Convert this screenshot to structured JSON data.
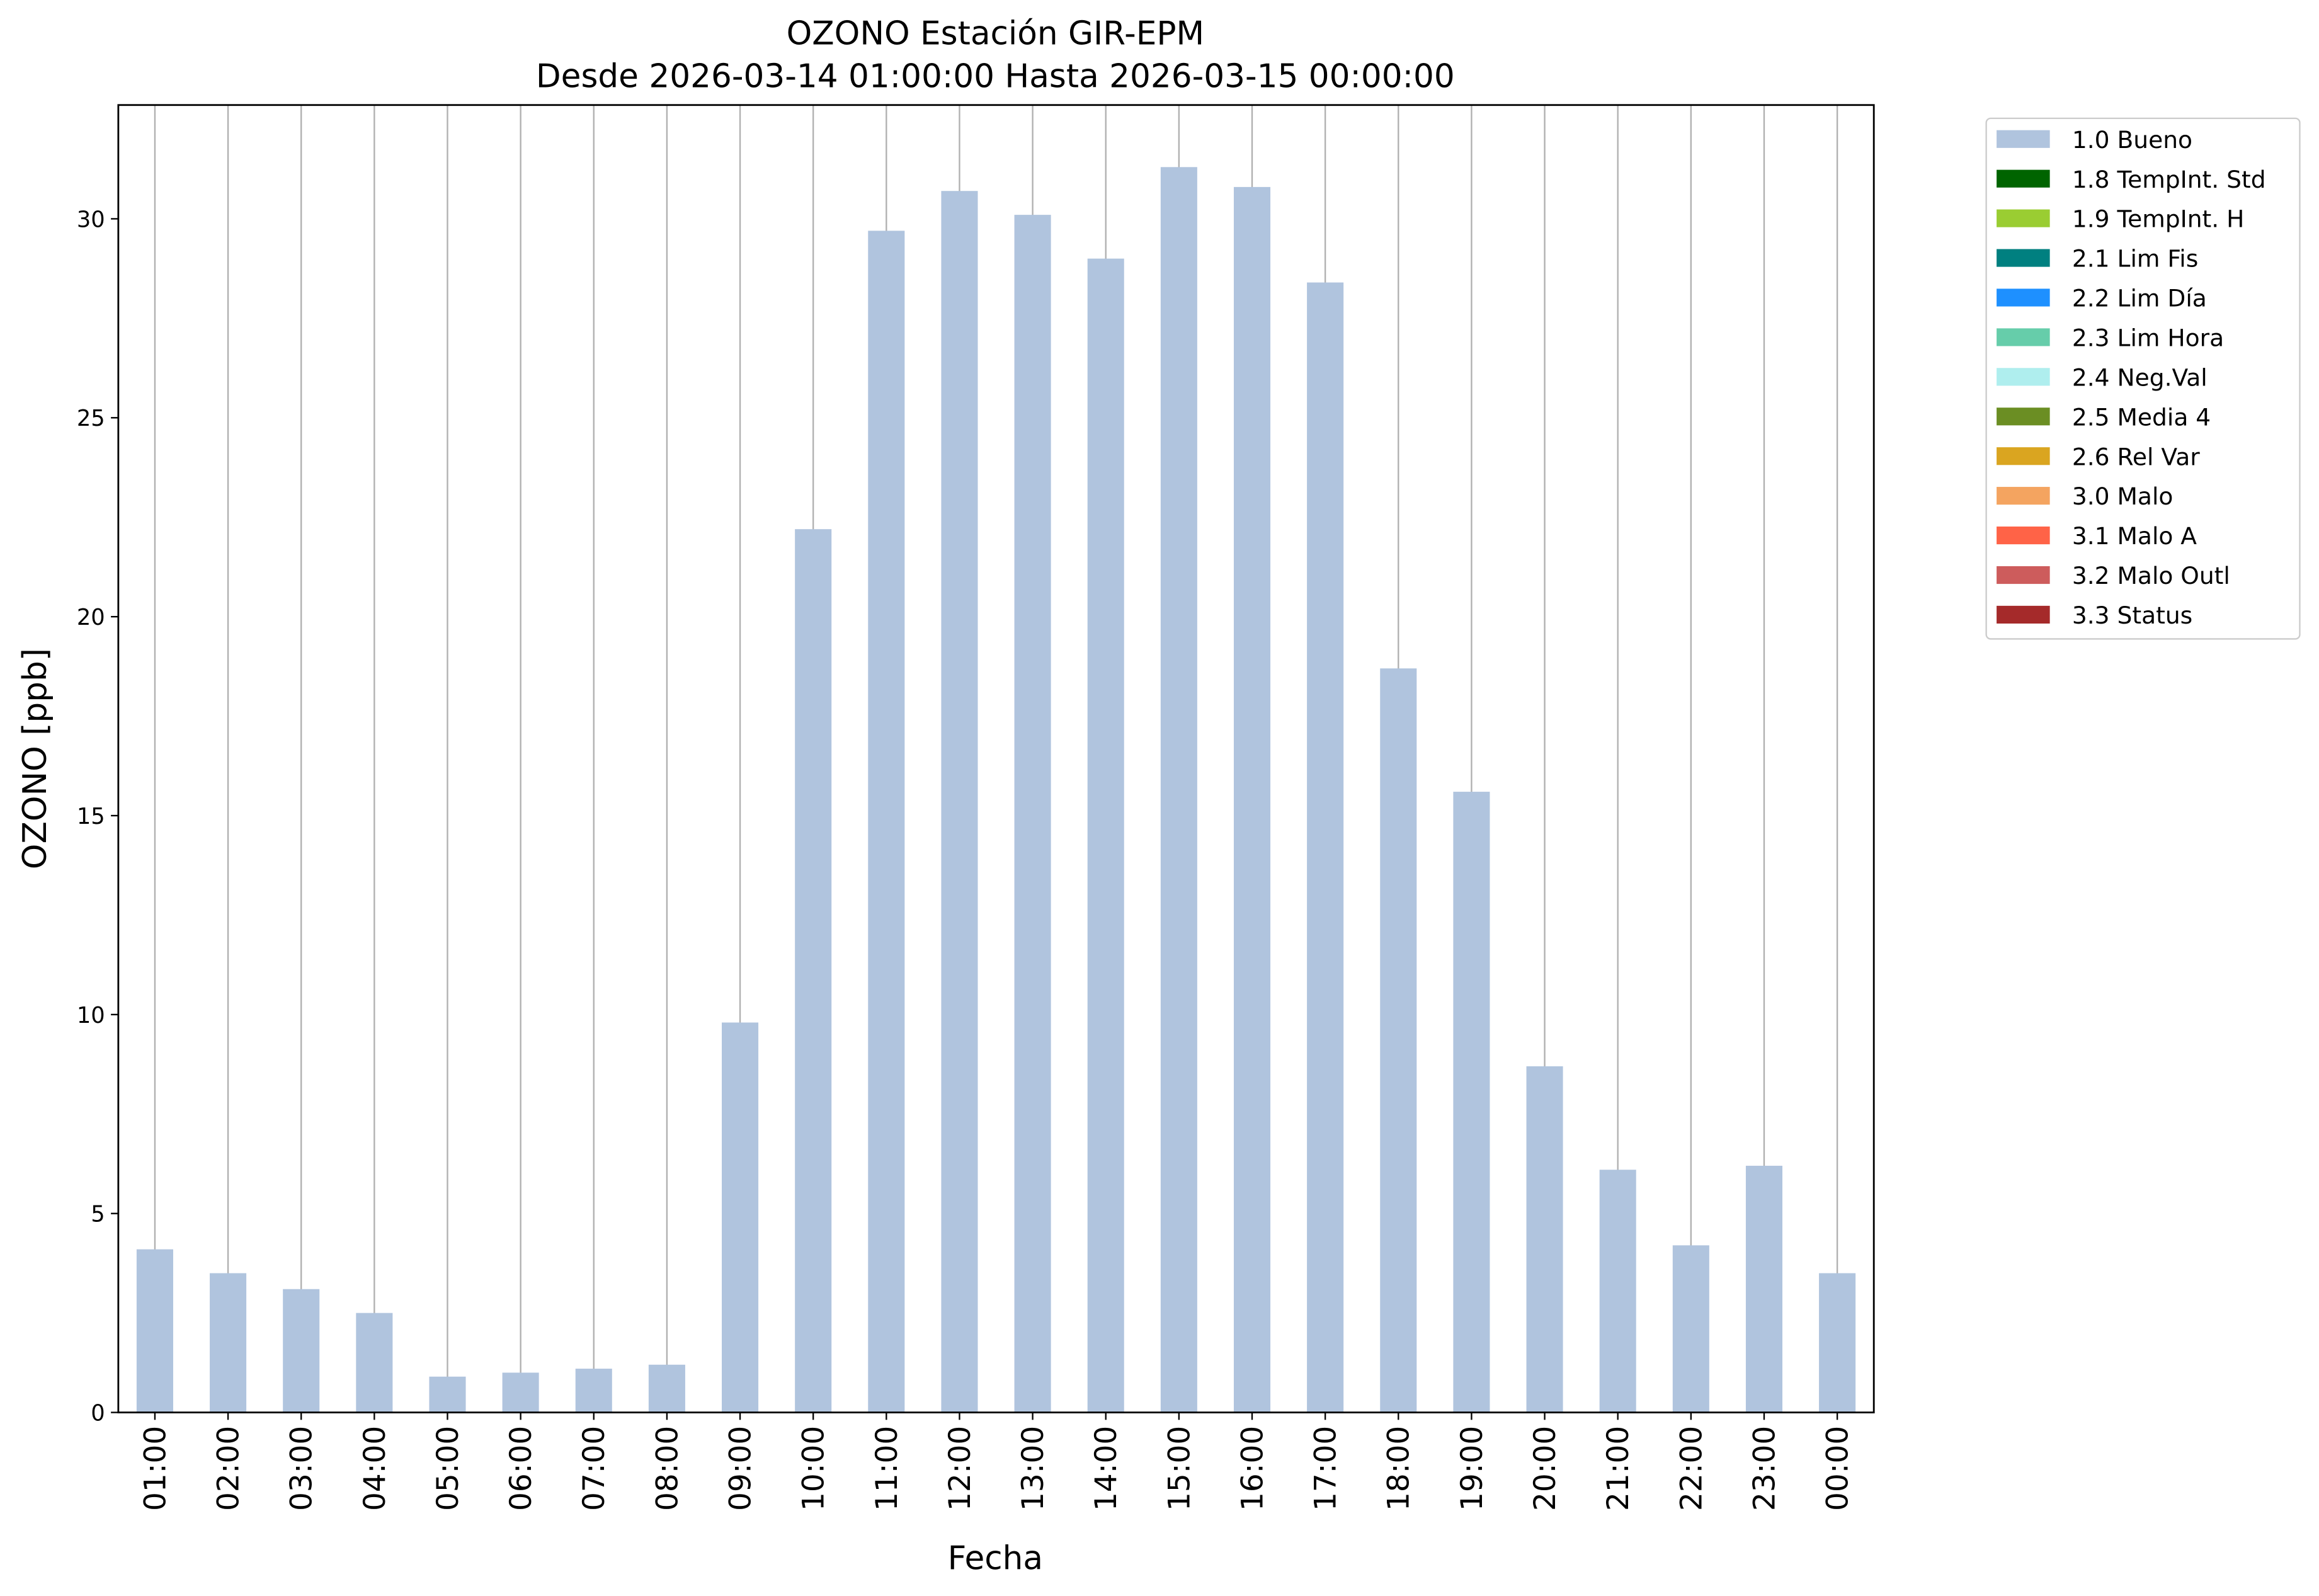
{
  "chart_data": {
    "type": "bar",
    "title": "OZONO Estación GIR-EPM",
    "subtitle": "Desde 2026-03-14 01:00:00 Hasta 2026-03-15 00:00:00",
    "x_label": "Fecha",
    "y_label": "OZONO [ppb]",
    "categories": [
      "01:00",
      "02:00",
      "03:00",
      "04:00",
      "05:00",
      "06:00",
      "07:00",
      "08:00",
      "09:00",
      "10:00",
      "11:00",
      "12:00",
      "13:00",
      "14:00",
      "15:00",
      "16:00",
      "17:00",
      "18:00",
      "19:00",
      "20:00",
      "21:00",
      "22:00",
      "23:00",
      "00:00"
    ],
    "series": [
      {
        "name": "1.0 Bueno",
        "color": "#b0c4de",
        "values": [
          4.1,
          3.5,
          3.1,
          2.5,
          0.9,
          1.0,
          1.1,
          1.2,
          9.8,
          22.2,
          29.7,
          30.7,
          30.1,
          29.0,
          31.3,
          30.8,
          28.4,
          18.7,
          15.6,
          8.7,
          6.1,
          4.2,
          6.2,
          3.5
        ]
      },
      {
        "name": "1.8 TempInt. Std",
        "color": "#006400"
      },
      {
        "name": "1.9 TempInt. H",
        "color": "#9acd32"
      },
      {
        "name": "2.1 Lim Fis",
        "color": "#008080"
      },
      {
        "name": "2.2 Lim Día",
        "color": "#1e90ff"
      },
      {
        "name": "2.3 Lim Hora",
        "color": "#66cdaa"
      },
      {
        "name": "2.4 Neg.Val",
        "color": "#afeeee"
      },
      {
        "name": "2.5 Media 4",
        "color": "#6b8e23"
      },
      {
        "name": "2.6 Rel Var",
        "color": "#daa520"
      },
      {
        "name": "3.0 Malo",
        "color": "#f4a460"
      },
      {
        "name": "3.1 Malo A",
        "color": "#ff6347"
      },
      {
        "name": "3.2 Malo Outl",
        "color": "#cd5c5c"
      },
      {
        "name": "3.3 Status",
        "color": "#a52a2a"
      }
    ],
    "ylim": [
      0,
      32.86
    ],
    "yticks": [
      0,
      5,
      10,
      15,
      20,
      25,
      30
    ],
    "grid": true,
    "legend": "outside-upper-right"
  }
}
